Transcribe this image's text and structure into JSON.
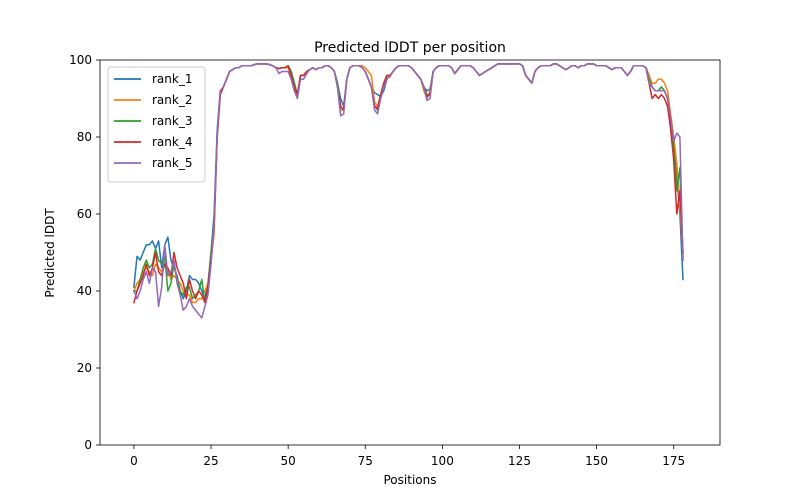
{
  "chart_data": {
    "type": "line",
    "title": "Predicted lDDT per position",
    "xlabel": "Positions",
    "ylabel": "Predicted lDDT",
    "xlim": [
      -11,
      190
    ],
    "ylim": [
      0,
      100
    ],
    "xticks": [
      0,
      25,
      50,
      75,
      100,
      125,
      150,
      175
    ],
    "yticks": [
      0,
      20,
      40,
      60,
      80,
      100
    ],
    "grid": false,
    "legend_position": "top-left",
    "x_start": 0,
    "series": [
      {
        "name": "rank_1",
        "color": "#1f77b4",
        "values": [
          41,
          49,
          48,
          50,
          52,
          52,
          53,
          51,
          53,
          46,
          52,
          54,
          48,
          46,
          44,
          40,
          38,
          40,
          44,
          43,
          43,
          42,
          40,
          38,
          42,
          50,
          60,
          82,
          92,
          93,
          95,
          97,
          97.5,
          98,
          98,
          98.5,
          98.5,
          98.5,
          98.5,
          98.8,
          99,
          99,
          99,
          99,
          98.8,
          98.5,
          98,
          97.8,
          98,
          98,
          98.5,
          97,
          94,
          91,
          96,
          96,
          97,
          97.5,
          98,
          97.5,
          98,
          98,
          98.5,
          98.5,
          98,
          97,
          94,
          90,
          88,
          95,
          98,
          98.5,
          98.5,
          98.5,
          98,
          97,
          95,
          93,
          91.5,
          91,
          90.5,
          92,
          95,
          96,
          97,
          98,
          98.5,
          98.5,
          98.5,
          98.5,
          98,
          97,
          96,
          95,
          93,
          92,
          92.5,
          97,
          98,
          98.5,
          98.5,
          98.5,
          98.5,
          98,
          96.5,
          97.5,
          98.5,
          98.5,
          98.5,
          98.5,
          98,
          97,
          96,
          96.5,
          97,
          97.5,
          98,
          98.5,
          99,
          99,
          99,
          99,
          99,
          99,
          99,
          99,
          98.5,
          96,
          95,
          94,
          97,
          98,
          98.5,
          98.5,
          98.5,
          98.5,
          99,
          99,
          98.5,
          98,
          97.5,
          98,
          98.5,
          98.5,
          98,
          98.5,
          98.5,
          99,
          99,
          99,
          98.5,
          98.5,
          98.5,
          98.5,
          98,
          97.5,
          98,
          98,
          98,
          97,
          96,
          97,
          98.5,
          98.5,
          98.5,
          98.5,
          98,
          96,
          93,
          92,
          92,
          93,
          92,
          90,
          85,
          78,
          70,
          60,
          43
        ]
      },
      {
        "name": "rank_2",
        "color": "#ff7f0e",
        "values": [
          40,
          42,
          43,
          45,
          46,
          45,
          44,
          47,
          46,
          45,
          47,
          45,
          43,
          44,
          43,
          42,
          40,
          39,
          39,
          37,
          37,
          38,
          38,
          40,
          42,
          48,
          55,
          80,
          91,
          93,
          95,
          97,
          97.5,
          98,
          98,
          98.5,
          98.5,
          98.5,
          98.5,
          98.8,
          99,
          99,
          99,
          99,
          98.8,
          98.5,
          98,
          97.8,
          98,
          98,
          98,
          96,
          93,
          91,
          96,
          96,
          97,
          97.5,
          98,
          97.5,
          98,
          98,
          98.5,
          98.5,
          98,
          97,
          93,
          87,
          87,
          95,
          98,
          98.5,
          98.5,
          98.5,
          98.5,
          98,
          97,
          96,
          89,
          88,
          91,
          94,
          96,
          95.5,
          97,
          98,
          98.5,
          98.5,
          98.5,
          98.5,
          98,
          97,
          96,
          95,
          92,
          90,
          92,
          97,
          98,
          98.5,
          98.5,
          98.5,
          98.5,
          98,
          96.5,
          97.5,
          98.5,
          98.5,
          98.5,
          98.5,
          98,
          97,
          96,
          96.5,
          97,
          97.5,
          98,
          98.5,
          99,
          99,
          99,
          99,
          99,
          99,
          99,
          99,
          98.5,
          96,
          95,
          94,
          97,
          98,
          98.5,
          98.5,
          98.5,
          98.5,
          99,
          99,
          98.5,
          98,
          97.5,
          98,
          98.5,
          98.5,
          98,
          98.5,
          98.5,
          99,
          99,
          99,
          98.5,
          98.5,
          98.5,
          98.5,
          98,
          97.5,
          98,
          98,
          98,
          97,
          96,
          97,
          98.5,
          98.5,
          98.5,
          98.5,
          98,
          96,
          94,
          94,
          95,
          95,
          94,
          92,
          86,
          80,
          73,
          62,
          50
        ]
      },
      {
        "name": "rank_3",
        "color": "#2ca02c",
        "values": [
          40,
          40,
          43,
          46,
          48,
          46,
          47,
          51,
          48,
          47,
          49,
          40,
          42,
          47,
          43,
          40,
          39,
          41,
          41,
          38,
          39,
          40,
          43,
          37,
          41,
          50,
          58,
          81,
          92,
          93,
          95,
          97,
          97.5,
          98,
          98,
          98.5,
          98.5,
          98.5,
          98.5,
          98.8,
          99,
          99,
          99,
          99,
          98.8,
          98.5,
          98,
          97.8,
          98,
          98,
          98.5,
          97,
          94,
          91,
          96,
          96,
          97,
          97.5,
          98,
          97.5,
          98,
          98,
          98.5,
          98.5,
          98,
          97,
          94,
          88,
          87,
          95,
          98,
          98.5,
          98.5,
          98.5,
          98,
          97,
          95,
          93,
          88,
          87,
          91,
          94,
          96,
          96,
          97,
          98,
          98.5,
          98.5,
          98.5,
          98.5,
          98,
          97,
          96,
          95,
          93,
          91,
          91,
          97,
          98,
          98.5,
          98.5,
          98.5,
          98.5,
          98,
          96.5,
          97.5,
          98.5,
          98.5,
          98.5,
          98.5,
          98,
          97,
          96,
          96.5,
          97,
          97.5,
          98,
          98.5,
          99,
          99,
          99,
          99,
          99,
          99,
          99,
          99,
          98.5,
          96,
          95,
          94,
          97,
          98,
          98.5,
          98.5,
          98.5,
          98.5,
          99,
          99,
          98.5,
          98,
          97.5,
          98,
          98.5,
          98.5,
          98,
          98.5,
          98.5,
          99,
          99,
          99,
          98.5,
          98.5,
          98.5,
          98.5,
          98,
          97.5,
          98,
          98,
          98,
          97,
          96,
          97,
          98.5,
          98.5,
          98.5,
          98.5,
          98,
          95,
          93,
          92,
          92,
          93,
          92,
          90,
          84,
          78,
          66,
          72,
          48
        ]
      },
      {
        "name": "rank_4",
        "color": "#d62728",
        "values": [
          37,
          40,
          42,
          44,
          47,
          44,
          46,
          50,
          45,
          44,
          47,
          46,
          44,
          50,
          46,
          44,
          42,
          38,
          43,
          40,
          38,
          40,
          39,
          37,
          41,
          48,
          57,
          80,
          91,
          93,
          95,
          97,
          97.5,
          98,
          98,
          98.5,
          98.5,
          98.5,
          98.5,
          98.8,
          99,
          99,
          99,
          99,
          98.8,
          98.5,
          98,
          97.8,
          98,
          98,
          98.5,
          96,
          93,
          91,
          96,
          96,
          97,
          97.5,
          98,
          97.5,
          98,
          98,
          98.5,
          98.5,
          98,
          97,
          93,
          88,
          87,
          95,
          98,
          98.5,
          98.5,
          98.5,
          98,
          97,
          95,
          93,
          88,
          87.5,
          91,
          94,
          96,
          96,
          97,
          98,
          98.5,
          98.5,
          98.5,
          98.5,
          98,
          97,
          96,
          95,
          93,
          90.5,
          91,
          97,
          98,
          98.5,
          98.5,
          98.5,
          98.5,
          98,
          96.5,
          97.5,
          98.5,
          98.5,
          98.5,
          98.5,
          98,
          97,
          96,
          96.5,
          97,
          97.5,
          98,
          98.5,
          99,
          99,
          99,
          99,
          99,
          99,
          99,
          99,
          98.5,
          96,
          95,
          94,
          97,
          98,
          98.5,
          98.5,
          98.5,
          98.5,
          99,
          99,
          98.5,
          98,
          97.5,
          98,
          98.5,
          98.5,
          98,
          98.5,
          98.5,
          99,
          99,
          99,
          98.5,
          98.5,
          98.5,
          98.5,
          98,
          97.5,
          98,
          98,
          98,
          97,
          96,
          97,
          98.5,
          98.5,
          98.5,
          98.5,
          98,
          94,
          90,
          91,
          90,
          91,
          90,
          88,
          82,
          74,
          60,
          66,
          50
        ]
      },
      {
        "name": "rank_5",
        "color": "#9467bd",
        "values": [
          40,
          38,
          40,
          43,
          45,
          42,
          46,
          45,
          36,
          41,
          52,
          44,
          45,
          48,
          42,
          39,
          35,
          36,
          38,
          36,
          35,
          34,
          33,
          36,
          39,
          47,
          57,
          81,
          92,
          93,
          95,
          97,
          97.5,
          98,
          98,
          98.5,
          98.5,
          98.5,
          98.5,
          98.8,
          99,
          99,
          99,
          99,
          98.8,
          98.5,
          98,
          96.5,
          97,
          97,
          97,
          95,
          92,
          90,
          95,
          95,
          96.5,
          97.5,
          98,
          97.5,
          98,
          98,
          98.5,
          98.5,
          98,
          97,
          93,
          85.5,
          86,
          95,
          98,
          98.5,
          98.5,
          98.5,
          98,
          97,
          95,
          93,
          87,
          86,
          90,
          93,
          95,
          96,
          97,
          98,
          98.5,
          98.5,
          98.5,
          98.5,
          98,
          97,
          96,
          95,
          93,
          89.5,
          90,
          97,
          98,
          98.5,
          98.5,
          98.5,
          98.5,
          98,
          96.5,
          97.5,
          98.5,
          98.5,
          98.5,
          98.5,
          98,
          97,
          96,
          96.5,
          97,
          97.5,
          98,
          98.5,
          99,
          99,
          99,
          99,
          99,
          99,
          99,
          99,
          98.5,
          96,
          95,
          94,
          97,
          98,
          98.5,
          98.5,
          98.5,
          98.5,
          99,
          99,
          98.5,
          98,
          97.5,
          98,
          98.5,
          98.5,
          98,
          98.5,
          98.5,
          99,
          99,
          99,
          98.5,
          98.5,
          98.5,
          98.5,
          98,
          97.5,
          98,
          98,
          98,
          97,
          96,
          97,
          98.5,
          98.5,
          98.5,
          98.5,
          98,
          94,
          93,
          92,
          92,
          92,
          92,
          90,
          85,
          79,
          81,
          80,
          48
        ]
      }
    ]
  }
}
